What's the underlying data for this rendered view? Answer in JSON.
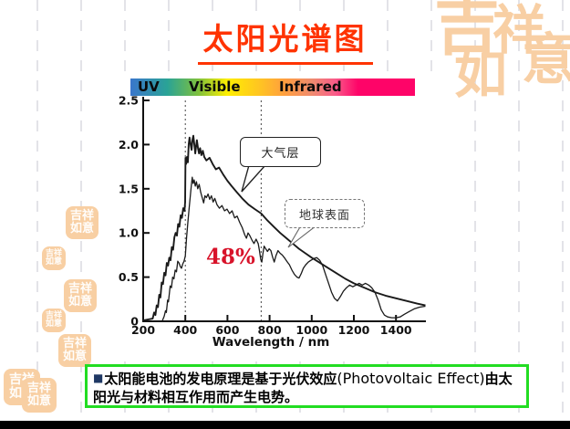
{
  "slide": {
    "title": "太阳光谱图",
    "footer": {
      "bullet": "■",
      "text_cjk_1": "太阳能电池的发电原理是基于光伏效应",
      "text_latin": "(Photovoltaic Effect)",
      "text_cjk_2": "由太阳光与材料相互作用而产生电势。"
    },
    "decor_seal_text": "吉祥如意",
    "decor_chars": [
      "吉",
      "祥",
      "意",
      "如"
    ]
  },
  "spectrum_bar": {
    "labels": {
      "uv": "UV",
      "visible": "Visible",
      "infrared": "Infrared"
    },
    "gradient_colors": [
      "#3a76cc",
      "#2aa396",
      "#7fc13c",
      "#ffee00",
      "#ffc224",
      "#ff9f3e",
      "#ef8a70",
      "#f95b8a",
      "#fe0468"
    ]
  },
  "chart_data": {
    "type": "line",
    "title": "",
    "xlabel": "Wavelength / nm",
    "ylabel": "",
    "xlim": [
      200,
      1560
    ],
    "ylim": [
      0,
      2.5
    ],
    "x_ticks": [
      200,
      400,
      600,
      800,
      1000,
      1200,
      1400
    ],
    "y_ticks": [
      0,
      0.5,
      1,
      1.5,
      2,
      2.5
    ],
    "y_tick_labels": [
      "0",
      "0.5",
      "1.0",
      "1.5",
      "2.0",
      "2.5"
    ],
    "grid": "off",
    "dashed_vlines_nm": [
      400,
      760
    ],
    "annotations": {
      "percent_label": {
        "text": "48%",
        "color": "#d8132a"
      }
    },
    "callouts": [
      {
        "id": "atmosphere",
        "label": "大气层"
      },
      {
        "id": "earth-surface",
        "label": "地球表面"
      }
    ],
    "series": [
      {
        "name": "大气层",
        "points": [
          [
            200,
            0.01
          ],
          [
            245,
            0.03
          ],
          [
            252,
            0.1
          ],
          [
            258,
            0.07
          ],
          [
            264,
            0.18
          ],
          [
            270,
            0.16
          ],
          [
            276,
            0.3
          ],
          [
            282,
            0.27
          ],
          [
            288,
            0.44
          ],
          [
            294,
            0.42
          ],
          [
            300,
            0.55
          ],
          [
            306,
            0.52
          ],
          [
            312,
            0.66
          ],
          [
            318,
            0.63
          ],
          [
            324,
            0.72
          ],
          [
            330,
            0.69
          ],
          [
            336,
            0.84
          ],
          [
            342,
            0.81
          ],
          [
            348,
            0.95
          ],
          [
            354,
            1.0
          ],
          [
            360,
            0.97
          ],
          [
            366,
            1.1
          ],
          [
            372,
            1.07
          ],
          [
            378,
            1.2
          ],
          [
            384,
            1.17
          ],
          [
            390,
            1.28
          ],
          [
            396,
            1.25
          ],
          [
            399,
            1.35
          ],
          [
            401,
            1.85
          ],
          [
            404,
            1.78
          ],
          [
            408,
            1.86
          ],
          [
            412,
            1.8
          ],
          [
            416,
            2.0
          ],
          [
            420,
            2.08
          ],
          [
            425,
            2.0
          ],
          [
            430,
            1.94
          ],
          [
            434,
            2.06
          ],
          [
            438,
            2.1
          ],
          [
            443,
            2.0
          ],
          [
            447,
            1.9
          ],
          [
            451,
            1.98
          ],
          [
            455,
            2.05
          ],
          [
            460,
            1.96
          ],
          [
            465,
            1.9
          ],
          [
            470,
            1.96
          ],
          [
            476,
            1.88
          ],
          [
            483,
            1.93
          ],
          [
            490,
            1.86
          ],
          [
            500,
            1.82
          ],
          [
            515,
            1.85
          ],
          [
            530,
            1.78
          ],
          [
            545,
            1.72
          ],
          [
            560,
            1.74
          ],
          [
            580,
            1.66
          ],
          [
            600,
            1.59
          ],
          [
            620,
            1.53
          ],
          [
            645,
            1.46
          ],
          [
            670,
            1.39
          ],
          [
            700,
            1.32
          ],
          [
            730,
            1.27
          ],
          [
            760,
            1.22
          ],
          [
            790,
            1.14
          ],
          [
            820,
            1.07
          ],
          [
            850,
            1.0
          ],
          [
            880,
            0.94
          ],
          [
            910,
            0.88
          ],
          [
            940,
            0.82
          ],
          [
            970,
            0.77
          ],
          [
            1000,
            0.72
          ],
          [
            1040,
            0.66
          ],
          [
            1080,
            0.6
          ],
          [
            1120,
            0.54
          ],
          [
            1160,
            0.48
          ],
          [
            1200,
            0.43
          ],
          [
            1250,
            0.38
          ],
          [
            1300,
            0.33
          ],
          [
            1350,
            0.29
          ],
          [
            1400,
            0.26
          ],
          [
            1450,
            0.23
          ],
          [
            1500,
            0.2
          ],
          [
            1540,
            0.18
          ]
        ]
      },
      {
        "name": "地球表面",
        "points": [
          [
            290,
            0.0
          ],
          [
            300,
            0.06
          ],
          [
            306,
            0.12
          ],
          [
            310,
            0.1
          ],
          [
            316,
            0.24
          ],
          [
            320,
            0.22
          ],
          [
            328,
            0.4
          ],
          [
            334,
            0.38
          ],
          [
            340,
            0.5
          ],
          [
            346,
            0.48
          ],
          [
            352,
            0.58
          ],
          [
            358,
            0.56
          ],
          [
            364,
            0.68
          ],
          [
            370,
            0.66
          ],
          [
            376,
            0.62
          ],
          [
            382,
            0.6
          ],
          [
            388,
            0.65
          ],
          [
            394,
            0.68
          ],
          [
            400,
            0.74
          ],
          [
            406,
            0.95
          ],
          [
            412,
            1.12
          ],
          [
            418,
            1.28
          ],
          [
            424,
            1.42
          ],
          [
            429,
            1.55
          ],
          [
            433,
            1.63
          ],
          [
            437,
            1.56
          ],
          [
            442,
            1.6
          ],
          [
            447,
            1.53
          ],
          [
            453,
            1.58
          ],
          [
            459,
            1.5
          ],
          [
            466,
            1.55
          ],
          [
            473,
            1.46
          ],
          [
            480,
            1.4
          ],
          [
            487,
            1.34
          ],
          [
            493,
            1.42
          ],
          [
            500,
            1.4
          ],
          [
            508,
            1.44
          ],
          [
            516,
            1.38
          ],
          [
            524,
            1.42
          ],
          [
            532,
            1.35
          ],
          [
            540,
            1.39
          ],
          [
            550,
            1.32
          ],
          [
            562,
            1.28
          ],
          [
            574,
            1.31
          ],
          [
            586,
            1.25
          ],
          [
            598,
            1.27
          ],
          [
            610,
            1.22
          ],
          [
            622,
            1.25
          ],
          [
            634,
            1.17
          ],
          [
            646,
            1.19
          ],
          [
            658,
            1.12
          ],
          [
            670,
            1.06
          ],
          [
            682,
            0.98
          ],
          [
            690,
            0.94
          ],
          [
            698,
            1.0
          ],
          [
            706,
            0.97
          ],
          [
            716,
            0.92
          ],
          [
            726,
            0.88
          ],
          [
            736,
            0.93
          ],
          [
            746,
            0.88
          ],
          [
            752,
            0.8
          ],
          [
            758,
            0.7
          ],
          [
            763,
            0.67
          ],
          [
            768,
            0.76
          ],
          [
            774,
            0.85
          ],
          [
            782,
            0.82
          ],
          [
            790,
            0.79
          ],
          [
            798,
            0.82
          ],
          [
            806,
            0.8
          ],
          [
            814,
            0.73
          ],
          [
            822,
            0.67
          ],
          [
            830,
            0.74
          ],
          [
            840,
            0.8
          ],
          [
            850,
            0.77
          ],
          [
            860,
            0.75
          ],
          [
            870,
            0.72
          ],
          [
            882,
            0.68
          ],
          [
            894,
            0.64
          ],
          [
            906,
            0.58
          ],
          [
            918,
            0.53
          ],
          [
            930,
            0.5
          ],
          [
            940,
            0.49
          ],
          [
            950,
            0.54
          ],
          [
            960,
            0.6
          ],
          [
            972,
            0.64
          ],
          [
            984,
            0.67
          ],
          [
            996,
            0.69
          ],
          [
            1010,
            0.71
          ],
          [
            1024,
            0.72
          ],
          [
            1038,
            0.69
          ],
          [
            1052,
            0.63
          ],
          [
            1066,
            0.53
          ],
          [
            1080,
            0.43
          ],
          [
            1094,
            0.33
          ],
          [
            1108,
            0.26
          ],
          [
            1122,
            0.23
          ],
          [
            1136,
            0.28
          ],
          [
            1150,
            0.34
          ],
          [
            1165,
            0.38
          ],
          [
            1180,
            0.41
          ],
          [
            1195,
            0.39
          ],
          [
            1210,
            0.41
          ],
          [
            1225,
            0.43
          ],
          [
            1240,
            0.41
          ],
          [
            1255,
            0.43
          ],
          [
            1270,
            0.41
          ],
          [
            1285,
            0.38
          ],
          [
            1300,
            0.33
          ],
          [
            1315,
            0.24
          ],
          [
            1330,
            0.13
          ],
          [
            1345,
            0.07
          ],
          [
            1360,
            0.05
          ],
          [
            1380,
            0.04
          ],
          [
            1400,
            0.04
          ],
          [
            1420,
            0.05
          ],
          [
            1440,
            0.08
          ],
          [
            1462,
            0.11
          ],
          [
            1486,
            0.14
          ],
          [
            1512,
            0.16
          ],
          [
            1540,
            0.17
          ]
        ]
      }
    ]
  },
  "colors": {
    "title_red": "#ff3300",
    "footer_border_green": "#22dd22",
    "seal_orange": "#f8cfa3",
    "annotation_red": "#d8132a"
  }
}
